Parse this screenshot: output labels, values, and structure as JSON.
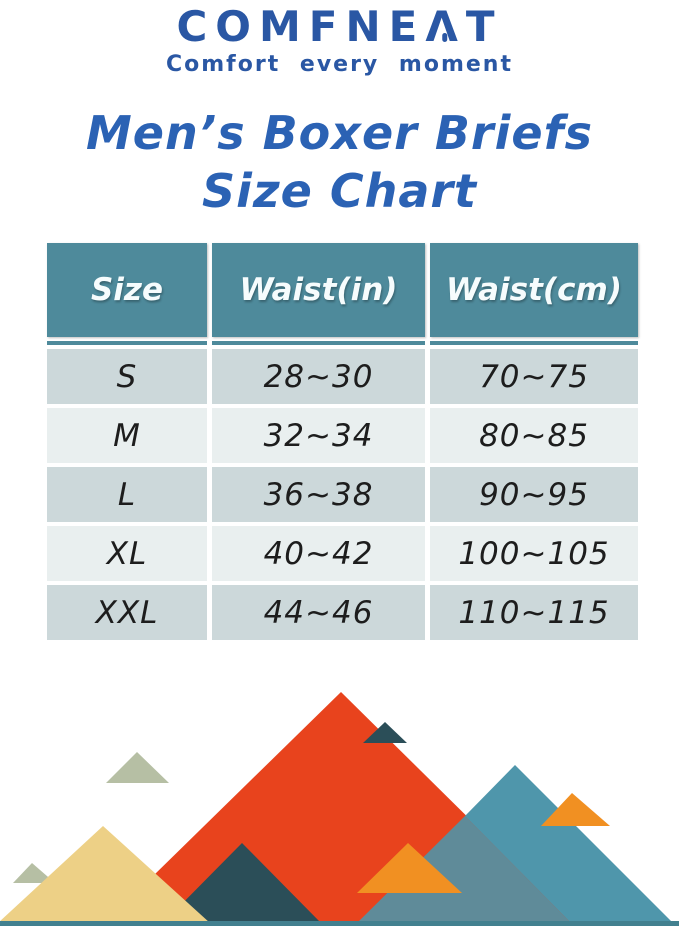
{
  "logo": {
    "text": "COMFNEAT",
    "pre": "COMFNE",
    "a_glyph": "Λ",
    "post": "T",
    "tagline": "Comfort every moment"
  },
  "title": {
    "line1": "Men’s Boxer Briefs",
    "line2": "Size Chart"
  },
  "table": {
    "headers": [
      "Size",
      "Waist(in)",
      "Waist(cm)"
    ],
    "rows": [
      [
        "S",
        "28~30",
        "70~75"
      ],
      [
        "M",
        "32~34",
        "80~85"
      ],
      [
        "L",
        "36~38",
        "90~95"
      ],
      [
        "XL",
        "40~42",
        "100~105"
      ],
      [
        "XXL",
        "44~46",
        "110~115"
      ]
    ]
  },
  "chart_data": {
    "type": "table",
    "title": "Men’s Boxer Briefs Size Chart",
    "columns": [
      "Size",
      "Waist(in)",
      "Waist(cm)"
    ],
    "rows": [
      [
        "S",
        "28~30",
        "70~75"
      ],
      [
        "M",
        "32~34",
        "80~85"
      ],
      [
        "L",
        "36~38",
        "90~95"
      ],
      [
        "XL",
        "40~42",
        "100~105"
      ],
      [
        "XXL",
        "44~46",
        "110~115"
      ]
    ]
  },
  "theme": {
    "brand_blue": "#2a57a4",
    "title_blue": "#2b62b4",
    "header_teal": "#4e8a9b",
    "header_text": "#f6fcfd",
    "row_dark": "#ccd8da",
    "row_light": "#e9efef",
    "cell_text": "#1d1d1d"
  },
  "mountain_colors": {
    "red": "#e8431d",
    "blue_teal": "#4f96ab",
    "blue_gray": "#5f8b99",
    "dark_slate": "#2b4e58",
    "orange": "#f19022",
    "yellow": "#edd086",
    "sage": "#b6bfa4",
    "strip": "#42808f"
  }
}
